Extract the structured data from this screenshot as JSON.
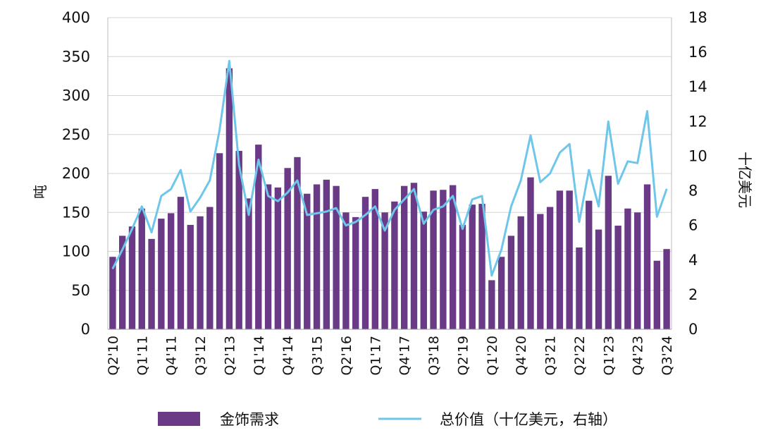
{
  "chart_data": {
    "type": "bar",
    "categories": [
      "Q2'10",
      "Q3'10",
      "Q4'10",
      "Q1'11",
      "Q2'11",
      "Q3'11",
      "Q4'11",
      "Q1'12",
      "Q2'12",
      "Q3'12",
      "Q4'12",
      "Q1'13",
      "Q2'13",
      "Q3'13",
      "Q4'13",
      "Q1'14",
      "Q2'14",
      "Q3'14",
      "Q4'14",
      "Q1'15",
      "Q2'15",
      "Q3'15",
      "Q4'15",
      "Q1'16",
      "Q2'16",
      "Q3'16",
      "Q4'16",
      "Q1'17",
      "Q2'17",
      "Q3'17",
      "Q4'17",
      "Q1'18",
      "Q2'18",
      "Q3'18",
      "Q4'18",
      "Q1'19",
      "Q2'19",
      "Q3'19",
      "Q4'19",
      "Q1'20",
      "Q2'20",
      "Q3'20",
      "Q4'20",
      "Q1'21",
      "Q2'21",
      "Q3'21",
      "Q4'21",
      "Q1'22",
      "Q2'22",
      "Q3'22",
      "Q4'22",
      "Q1'23",
      "Q2'23",
      "Q3'23",
      "Q4'23",
      "Q1'24",
      "Q2'24",
      "Q3'24"
    ],
    "xticks": [
      "Q2'10",
      "Q1'11",
      "Q4'11",
      "Q3'12",
      "Q2'13",
      "Q1'14",
      "Q4'14",
      "Q3'15",
      "Q2'16",
      "Q1'17",
      "Q4'17",
      "Q3'18",
      "Q2'19",
      "Q1'20",
      "Q4'20",
      "Q3'21",
      "Q2'22",
      "Q1'23",
      "Q4'23",
      "Q3'24"
    ],
    "series": [
      {
        "name": "金饰需求",
        "axis": "left",
        "type": "bar",
        "color": "#6b3a87",
        "values": [
          93,
          120,
          132,
          155,
          116,
          142,
          149,
          170,
          134,
          145,
          157,
          226,
          335,
          229,
          168,
          237,
          186,
          182,
          207,
          221,
          174,
          186,
          192,
          184,
          150,
          144,
          170,
          180,
          150,
          164,
          184,
          188,
          151,
          178,
          179,
          185,
          134,
          160,
          161,
          63,
          93,
          120,
          145,
          195,
          148,
          157,
          178,
          178,
          105,
          165,
          128,
          197,
          133,
          155,
          150,
          186,
          88,
          103
        ]
      },
      {
        "name": "总价值（十亿美元，右轴）",
        "axis": "right",
        "type": "line",
        "color": "#6ec6ea",
        "values": [
          3.5,
          4.6,
          5.8,
          7.1,
          5.6,
          7.7,
          8.1,
          9.2,
          6.8,
          7.6,
          8.6,
          11.5,
          15.5,
          9.5,
          6.6,
          9.8,
          7.7,
          7.4,
          7.9,
          8.6,
          6.6,
          6.7,
          6.8,
          7.0,
          6.0,
          6.2,
          6.6,
          7.1,
          5.7,
          6.9,
          7.5,
          8.1,
          6.1,
          6.9,
          7.1,
          7.7,
          5.8,
          7.5,
          7.7,
          3.1,
          4.6,
          7.1,
          8.6,
          11.2,
          8.5,
          9.0,
          10.2,
          10.7,
          6.2,
          9.2,
          7.1,
          12.0,
          8.4,
          9.7,
          9.6,
          12.6,
          6.5,
          8.1
        ]
      }
    ],
    "ylim_left": [
      0,
      400
    ],
    "ylim_right": [
      0,
      18
    ],
    "yticks_left": [
      "0",
      "50",
      "100",
      "150",
      "200",
      "250",
      "300",
      "350",
      "400"
    ],
    "yticks_right": [
      "0",
      "2",
      "4",
      "6",
      "8",
      "10",
      "12",
      "14",
      "16",
      "18"
    ],
    "ylabel_left": "吨",
    "ylabel_right": "十亿美元",
    "grid": true,
    "legend_position": "bottom"
  }
}
